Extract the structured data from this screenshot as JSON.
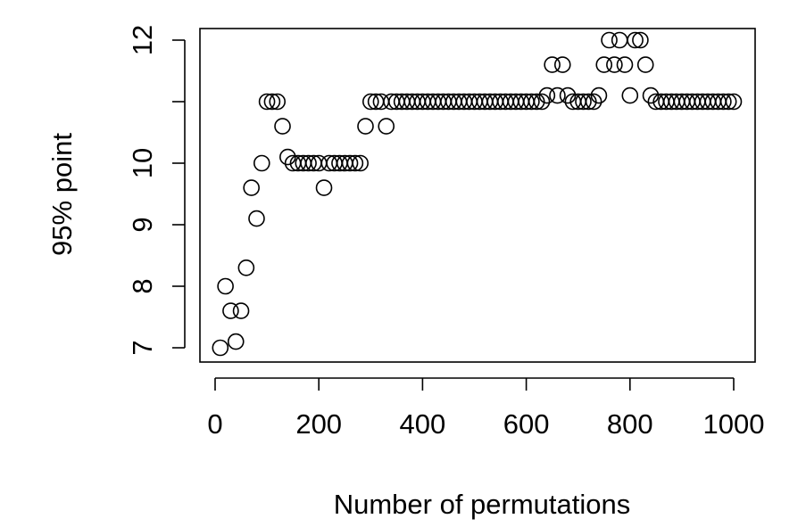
{
  "chart_data": {
    "type": "scatter",
    "xlabel": "Number of permutations",
    "ylabel": "95% point",
    "xlim": [
      0,
      1000
    ],
    "ylim": [
      7,
      12
    ],
    "x_ticks": [
      0,
      200,
      400,
      600,
      800,
      1000
    ],
    "y_ticks": [
      7,
      8,
      9,
      10,
      12
    ],
    "grid": false,
    "series": [
      {
        "marker": "open-circle",
        "color": "#000000",
        "points": [
          [
            10,
            7.0
          ],
          [
            20,
            8.0
          ],
          [
            30,
            7.6
          ],
          [
            40,
            7.1
          ],
          [
            50,
            7.6
          ],
          [
            60,
            8.3
          ],
          [
            70,
            9.6
          ],
          [
            80,
            9.1
          ],
          [
            90,
            10.0
          ],
          [
            100,
            11.0
          ],
          [
            110,
            11.0
          ],
          [
            120,
            11.0
          ],
          [
            130,
            10.6
          ],
          [
            140,
            10.1
          ],
          [
            150,
            10.0
          ],
          [
            160,
            10.0
          ],
          [
            170,
            10.0
          ],
          [
            180,
            10.0
          ],
          [
            190,
            10.0
          ],
          [
            200,
            10.0
          ],
          [
            210,
            9.6
          ],
          [
            220,
            10.0
          ],
          [
            230,
            10.0
          ],
          [
            240,
            10.0
          ],
          [
            250,
            10.0
          ],
          [
            260,
            10.0
          ],
          [
            270,
            10.0
          ],
          [
            280,
            10.0
          ],
          [
            290,
            10.6
          ],
          [
            300,
            11.0
          ],
          [
            310,
            11.0
          ],
          [
            320,
            11.0
          ],
          [
            330,
            10.6
          ],
          [
            340,
            11.0
          ],
          [
            350,
            11.0
          ],
          [
            360,
            11.0
          ],
          [
            370,
            11.0
          ],
          [
            380,
            11.0
          ],
          [
            390,
            11.0
          ],
          [
            400,
            11.0
          ],
          [
            410,
            11.0
          ],
          [
            420,
            11.0
          ],
          [
            430,
            11.0
          ],
          [
            440,
            11.0
          ],
          [
            450,
            11.0
          ],
          [
            460,
            11.0
          ],
          [
            470,
            11.0
          ],
          [
            480,
            11.0
          ],
          [
            490,
            11.0
          ],
          [
            500,
            11.0
          ],
          [
            510,
            11.0
          ],
          [
            520,
            11.0
          ],
          [
            530,
            11.0
          ],
          [
            540,
            11.0
          ],
          [
            550,
            11.0
          ],
          [
            560,
            11.0
          ],
          [
            570,
            11.0
          ],
          [
            580,
            11.0
          ],
          [
            590,
            11.0
          ],
          [
            600,
            11.0
          ],
          [
            610,
            11.0
          ],
          [
            620,
            11.0
          ],
          [
            630,
            11.0
          ],
          [
            640,
            11.1
          ],
          [
            650,
            11.6
          ],
          [
            660,
            11.1
          ],
          [
            670,
            11.6
          ],
          [
            680,
            11.1
          ],
          [
            690,
            11.0
          ],
          [
            700,
            11.0
          ],
          [
            710,
            11.0
          ],
          [
            720,
            11.0
          ],
          [
            730,
            11.0
          ],
          [
            740,
            11.1
          ],
          [
            750,
            11.6
          ],
          [
            760,
            12.0
          ],
          [
            770,
            11.6
          ],
          [
            780,
            12.0
          ],
          [
            790,
            11.6
          ],
          [
            800,
            11.1
          ],
          [
            810,
            12.0
          ],
          [
            820,
            12.0
          ],
          [
            830,
            11.6
          ],
          [
            840,
            11.1
          ],
          [
            850,
            11.0
          ],
          [
            860,
            11.0
          ],
          [
            870,
            11.0
          ],
          [
            880,
            11.0
          ],
          [
            890,
            11.0
          ],
          [
            900,
            11.0
          ],
          [
            910,
            11.0
          ],
          [
            920,
            11.0
          ],
          [
            930,
            11.0
          ],
          [
            940,
            11.0
          ],
          [
            950,
            11.0
          ],
          [
            960,
            11.0
          ],
          [
            970,
            11.0
          ],
          [
            980,
            11.0
          ],
          [
            990,
            11.0
          ],
          [
            1000,
            11.0
          ]
        ]
      }
    ]
  }
}
